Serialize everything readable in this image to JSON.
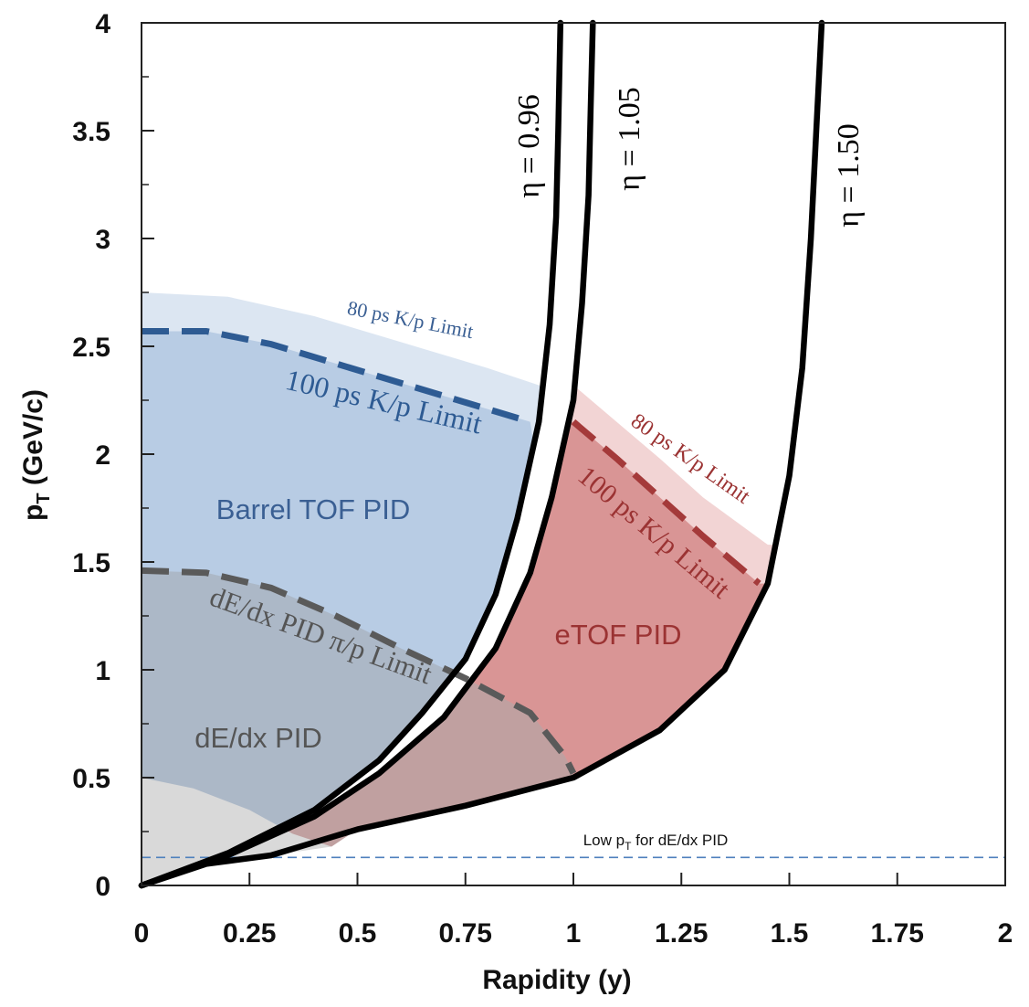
{
  "chart_data": {
    "type": "area",
    "xlabel": "Rapidity (y)",
    "ylabel_main": "p",
    "ylabel_sub": "T",
    "ylabel_rest": " (GeV/c)",
    "xlim": [
      0,
      2
    ],
    "ylim": [
      0,
      4
    ],
    "x_ticks": [
      "0",
      "0.25",
      "0.5",
      "0.75",
      "1",
      "1.25",
      "1.5",
      "1.75",
      "2"
    ],
    "y_ticks": [
      "0",
      "0.5",
      "1",
      "1.5",
      "2",
      "2.5",
      "3",
      "3.5",
      "4"
    ],
    "colors": {
      "barrel_light": "#dce6f2",
      "barrel_main": "#b8cce4",
      "dedx_region": "#a9b4c2",
      "dedx_low": "#d9d9d9",
      "etof_light": "#f2d4d4",
      "etof_main": "#d99595",
      "overlap": "#c0a0a0",
      "blue_text": "#3a5f93",
      "red_text": "#9b3333",
      "gray_text": "#555555",
      "dashed_blue": "#2e5b93",
      "dashed_red": "#a43a3a",
      "dashed_gray": "#5a5a5a",
      "low_pt_line": "#4f81bd"
    },
    "series": [
      {
        "name": "η = 0.96",
        "label": "η = 0.96",
        "points": [
          [
            0,
            0
          ],
          [
            0.2,
            0.15
          ],
          [
            0.4,
            0.35
          ],
          [
            0.55,
            0.58
          ],
          [
            0.65,
            0.8
          ],
          [
            0.75,
            1.05
          ],
          [
            0.82,
            1.35
          ],
          [
            0.87,
            1.7
          ],
          [
            0.92,
            2.15
          ],
          [
            0.945,
            2.6
          ],
          [
            0.96,
            3.1
          ],
          [
            0.965,
            3.5
          ],
          [
            0.97,
            4.0
          ]
        ]
      },
      {
        "name": "η = 1.05",
        "label": "η = 1.05",
        "points": [
          [
            0,
            0
          ],
          [
            0.2,
            0.14
          ],
          [
            0.4,
            0.32
          ],
          [
            0.55,
            0.52
          ],
          [
            0.7,
            0.78
          ],
          [
            0.82,
            1.1
          ],
          [
            0.9,
            1.45
          ],
          [
            0.95,
            1.8
          ],
          [
            1.0,
            2.25
          ],
          [
            1.02,
            2.7
          ],
          [
            1.035,
            3.2
          ],
          [
            1.04,
            3.6
          ],
          [
            1.045,
            4.0
          ]
        ]
      },
      {
        "name": "η = 1.50",
        "label": "η = 1.50",
        "points": [
          [
            0,
            0
          ],
          [
            0.15,
            0.1
          ],
          [
            0.3,
            0.14
          ],
          [
            0.5,
            0.26
          ],
          [
            0.75,
            0.37
          ],
          [
            1.0,
            0.5
          ],
          [
            1.2,
            0.72
          ],
          [
            1.35,
            1.0
          ],
          [
            1.45,
            1.4
          ],
          [
            1.5,
            1.9
          ],
          [
            1.53,
            2.4
          ],
          [
            1.55,
            3.0
          ],
          [
            1.565,
            3.6
          ],
          [
            1.575,
            4.0
          ]
        ]
      }
    ],
    "limits": [
      {
        "name": "barrel 100 ps K/p limit",
        "label": "100 ps K/p Limit",
        "style": "dashed",
        "points": [
          [
            0,
            2.57
          ],
          [
            0.15,
            2.57
          ],
          [
            0.3,
            2.51
          ],
          [
            0.45,
            2.42
          ],
          [
            0.6,
            2.33
          ],
          [
            0.75,
            2.24
          ],
          [
            0.9,
            2.15
          ]
        ]
      },
      {
        "name": "barrel 80 ps K/p limit",
        "label": "80 ps K/p Limit",
        "style": "edge",
        "points": [
          [
            0,
            2.75
          ],
          [
            0.2,
            2.73
          ],
          [
            0.4,
            2.64
          ],
          [
            0.6,
            2.52
          ],
          [
            0.8,
            2.4
          ],
          [
            0.95,
            2.3
          ]
        ]
      },
      {
        "name": "eTOF 100 ps K/p limit",
        "label": "100 ps K/p Limit",
        "style": "dashed",
        "points": [
          [
            1.0,
            2.15
          ],
          [
            1.1,
            1.98
          ],
          [
            1.2,
            1.8
          ],
          [
            1.3,
            1.62
          ],
          [
            1.43,
            1.4
          ]
        ]
      },
      {
        "name": "eTOF 80 ps K/p limit",
        "label": "80 ps K/p Limit",
        "style": "edge",
        "points": [
          [
            1.0,
            2.32
          ],
          [
            1.1,
            2.15
          ],
          [
            1.2,
            1.98
          ],
          [
            1.3,
            1.8
          ],
          [
            1.45,
            1.58
          ]
        ]
      },
      {
        "name": "dE/dx PID pi/p limit",
        "label": "dE/dx PID π/p Limit",
        "style": "dashed",
        "points": [
          [
            0,
            1.46
          ],
          [
            0.15,
            1.45
          ],
          [
            0.3,
            1.38
          ],
          [
            0.45,
            1.25
          ],
          [
            0.6,
            1.1
          ],
          [
            0.75,
            0.96
          ],
          [
            0.9,
            0.8
          ],
          [
            0.98,
            0.6
          ],
          [
            1.0,
            0.52
          ]
        ]
      },
      {
        "name": "low pT for dE/dx PID",
        "label": "Low p",
        "label_sub": "T",
        "label_rest": " for dE/dx PID",
        "style": "thin-dashed",
        "points": [
          [
            0,
            0.13
          ],
          [
            2,
            0.13
          ]
        ]
      }
    ],
    "regions": [
      {
        "name": "Barrel TOF PID",
        "label": "Barrel TOF PID"
      },
      {
        "name": "eTOF PID",
        "label": "eTOF PID"
      },
      {
        "name": "dE/dx PID",
        "label": "dE/dx PID"
      }
    ]
  }
}
